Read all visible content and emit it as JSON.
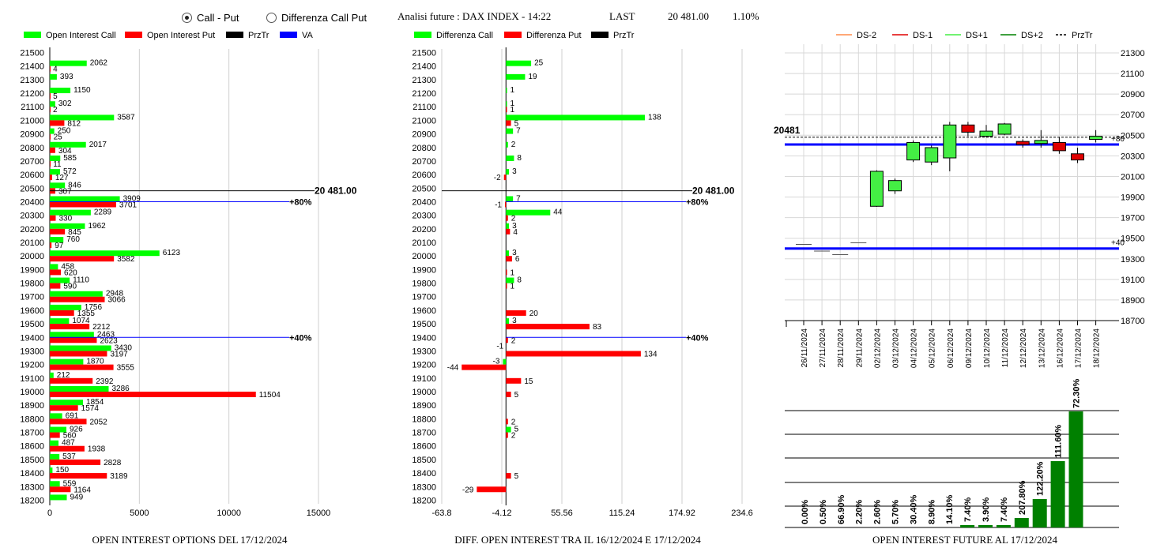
{
  "header": {
    "radio_call_put": "Call - Put",
    "radio_diff": "Differenza Call Put",
    "title": "Analisi future : DAX INDEX - 14:22",
    "last_label": "LAST",
    "last_value": "20 481.00",
    "change": "1.10%",
    "selected": "call_put"
  },
  "colors": {
    "call": "#00ff00",
    "put": "#ff0000",
    "przTr": "#000000",
    "va": "#0000ff",
    "ds_minus2": "#ff8c4a",
    "ds_minus1": "#e00000",
    "ds_plus1": "#44ee44",
    "ds_plus2": "#008000"
  },
  "chart_data": [
    {
      "type": "bar",
      "orientation": "horizontal",
      "title": "OPEN INTEREST OPTIONS DEL 17/12/2024",
      "legend": [
        "Open Interest Call",
        "Open Interest Put",
        "PrzTr",
        "VA"
      ],
      "strikes": [
        21500,
        21400,
        21300,
        21200,
        21100,
        21000,
        20900,
        20800,
        20700,
        20600,
        20500,
        20400,
        20300,
        20200,
        20100,
        20000,
        19900,
        19800,
        19700,
        19600,
        19500,
        19400,
        19300,
        19200,
        19100,
        19000,
        18900,
        18800,
        18700,
        18600,
        18500,
        18400,
        18300,
        18200
      ],
      "series": [
        {
          "name": "Open Interest Call",
          "values": [
            null,
            2062,
            393,
            1150,
            302,
            3587,
            250,
            2017,
            585,
            572,
            846,
            3909,
            2289,
            1962,
            760,
            6123,
            458,
            1110,
            2948,
            1756,
            1074,
            2463,
            3430,
            1870,
            212,
            3286,
            1854,
            691,
            926,
            487,
            537,
            150,
            559,
            949
          ]
        },
        {
          "name": "Open Interest Put",
          "values": [
            null,
            4,
            null,
            5,
            2,
            812,
            25,
            304,
            11,
            127,
            307,
            3701,
            330,
            845,
            97,
            3582,
            620,
            590,
            3066,
            1355,
            2212,
            2623,
            3197,
            3555,
            2392,
            11504,
            1574,
            2052,
            560,
            1938,
            2828,
            3189,
            1164,
            null
          ]
        }
      ],
      "xticks": [
        "0",
        "5000",
        "10000",
        "15000"
      ],
      "xlim": [
        0,
        15000
      ],
      "przTr_label": "20 481.00",
      "va_levels": [
        {
          "strike": 20400,
          "label": "+80%"
        },
        {
          "strike": 19400,
          "label": "+40%"
        }
      ]
    },
    {
      "type": "bar",
      "orientation": "horizontal",
      "title": "DIFF. OPEN INTEREST TRA IL 16/12/2024 E 17/12/2024",
      "legend": [
        "Differenza Call",
        "Differenza Put",
        "PrzTr"
      ],
      "strikes": [
        21500,
        21400,
        21300,
        21200,
        21100,
        21000,
        20900,
        20800,
        20700,
        20600,
        20500,
        20400,
        20300,
        20200,
        20100,
        20000,
        19900,
        19800,
        19700,
        19600,
        19500,
        19400,
        19300,
        19200,
        19100,
        19000,
        18900,
        18800,
        18700,
        18600,
        18500,
        18400,
        18300,
        18200
      ],
      "series": [
        {
          "name": "Differenza Call",
          "values": [
            null,
            25,
            19,
            1,
            1,
            138,
            7,
            2,
            8,
            3,
            null,
            7,
            44,
            3,
            null,
            3,
            null,
            8,
            null,
            null,
            3,
            null,
            null,
            -3,
            null,
            null,
            null,
            null,
            5,
            null,
            null,
            null,
            null,
            null
          ]
        },
        {
          "name": "Differenza Put",
          "values": [
            null,
            null,
            null,
            null,
            1,
            5,
            null,
            null,
            null,
            -2,
            null,
            -1,
            2,
            4,
            null,
            6,
            1,
            1,
            null,
            20,
            83,
            2,
            134,
            -44,
            15,
            5,
            null,
            2,
            2,
            null,
            null,
            5,
            -29,
            null
          ]
        }
      ],
      "xticks": [
        "-63.8",
        "-4.12",
        "55.56",
        "115.24",
        "174.92",
        "234.6"
      ],
      "xlim": [
        -63.8,
        234.6
      ],
      "extra_labels": [
        {
          "strike": 19300,
          "value": "-1"
        }
      ],
      "przTr_label": "20 481.00",
      "va_levels": [
        {
          "strike": 20400,
          "label": "+80%"
        },
        {
          "strike": 19400,
          "label": "+40%"
        }
      ]
    },
    {
      "type": "candlestick",
      "legend": [
        "DS-2",
        "DS-1",
        "DS+1",
        "DS+2",
        "PrzTr"
      ],
      "dates": [
        "26/11/2024",
        "27/11/2024",
        "28/11/2024",
        "29/11/2024",
        "02/12/2024",
        "03/12/2024",
        "04/12/2024",
        "05/12/2024",
        "06/12/2024",
        "09/12/2024",
        "10/12/2024",
        "11/12/2024",
        "12/12/2024",
        "13/12/2024",
        "16/12/2024",
        "17/12/2024",
        "18/12/2024"
      ],
      "candles": [
        {
          "o": 19440,
          "c": 19440,
          "h": 19440,
          "l": 19440
        },
        {
          "o": 19375,
          "c": 19375,
          "h": 19375,
          "l": 19375
        },
        {
          "o": 19340,
          "c": 19340,
          "h": 19340,
          "l": 19340
        },
        {
          "o": 19455,
          "c": 19455,
          "h": 19455,
          "l": 19455
        },
        {
          "o": 19810,
          "c": 20150,
          "h": 20160,
          "l": 19805
        },
        {
          "o": 19960,
          "c": 20060,
          "h": 20080,
          "l": 19930
        },
        {
          "o": 20260,
          "c": 20430,
          "h": 20450,
          "l": 20240
        },
        {
          "o": 20240,
          "c": 20380,
          "h": 20400,
          "l": 20210
        },
        {
          "o": 20280,
          "c": 20600,
          "h": 20630,
          "l": 20150
        },
        {
          "o": 20600,
          "c": 20530,
          "h": 20630,
          "l": 20490
        },
        {
          "o": 20490,
          "c": 20540,
          "h": 20600,
          "l": 20480
        },
        {
          "o": 20510,
          "c": 20610,
          "h": 20620,
          "l": 20500
        },
        {
          "o": 20440,
          "c": 20410,
          "h": 20460,
          "l": 20380
        },
        {
          "o": 20420,
          "c": 20450,
          "h": 20550,
          "l": 20380
        },
        {
          "o": 20430,
          "c": 20350,
          "h": 20480,
          "l": 20320
        },
        {
          "o": 20320,
          "c": 20260,
          "h": 20380,
          "l": 20230
        },
        {
          "o": 20460,
          "c": 20490,
          "h": 20550,
          "l": 20430
        }
      ],
      "yticks": [
        21300,
        21100,
        20900,
        20700,
        20500,
        20300,
        20100,
        19900,
        19700,
        19500,
        19300,
        19100,
        18900,
        18700
      ],
      "ylim": [
        18700,
        21300
      ],
      "przTr": 20481,
      "przTr_label": "20481",
      "va_levels": [
        {
          "value": 20410,
          "label": "+80"
        },
        {
          "value": 19400,
          "label": "+40"
        }
      ]
    },
    {
      "type": "bar",
      "title": "OPEN INTEREST FUTURE AL 17/12/2024",
      "values": [
        0,
        0.5,
        66.9,
        2.2,
        2.6,
        5.7,
        30.4,
        8.9,
        14.1,
        7.4,
        3.9,
        7.4,
        207.8,
        122.2,
        111.6,
        72.3
      ],
      "labels": [
        "0.00%",
        "0.50%",
        "66.90%",
        "2.20%",
        "2.60%",
        "5.70%",
        "30.40%",
        "8.90%",
        "14.10%",
        "7.40%",
        "3.90%",
        "7.40%",
        "207.80%",
        "122.20%",
        "111.60%",
        "72.30%"
      ],
      "bar_heights": [
        0,
        0,
        0,
        0,
        0,
        0,
        0,
        0,
        0,
        1,
        1,
        1,
        4,
        12,
        28,
        49
      ]
    }
  ]
}
